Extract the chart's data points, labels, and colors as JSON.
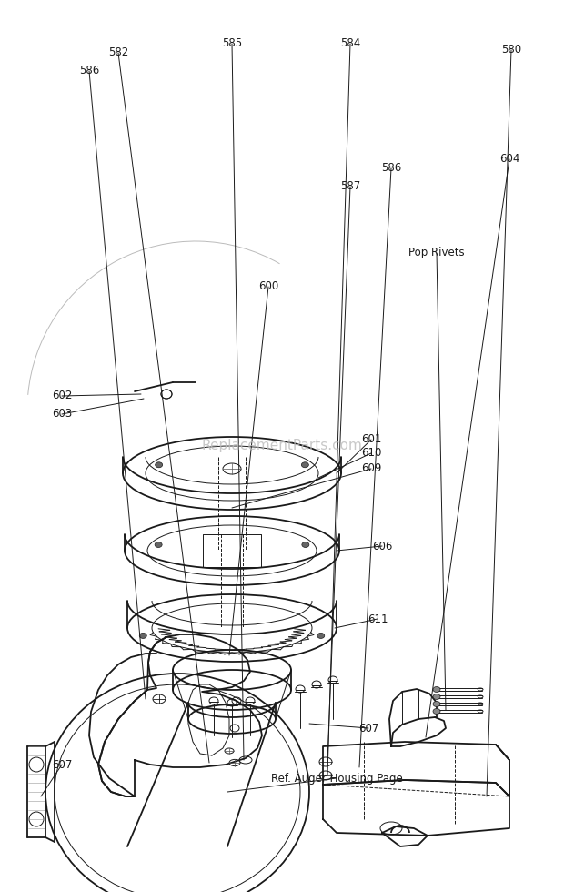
{
  "background_color": "#ffffff",
  "line_color": "#1a1a1a",
  "label_color": "#1a1a1a",
  "watermark_text": "ReplacementParts.com",
  "watermark_color": "#bbbbbb",
  "watermark_fontsize": 11,
  "label_fontsize": 8.5,
  "fig_width": 6.2,
  "fig_height": 9.8,
  "dpi": 100
}
